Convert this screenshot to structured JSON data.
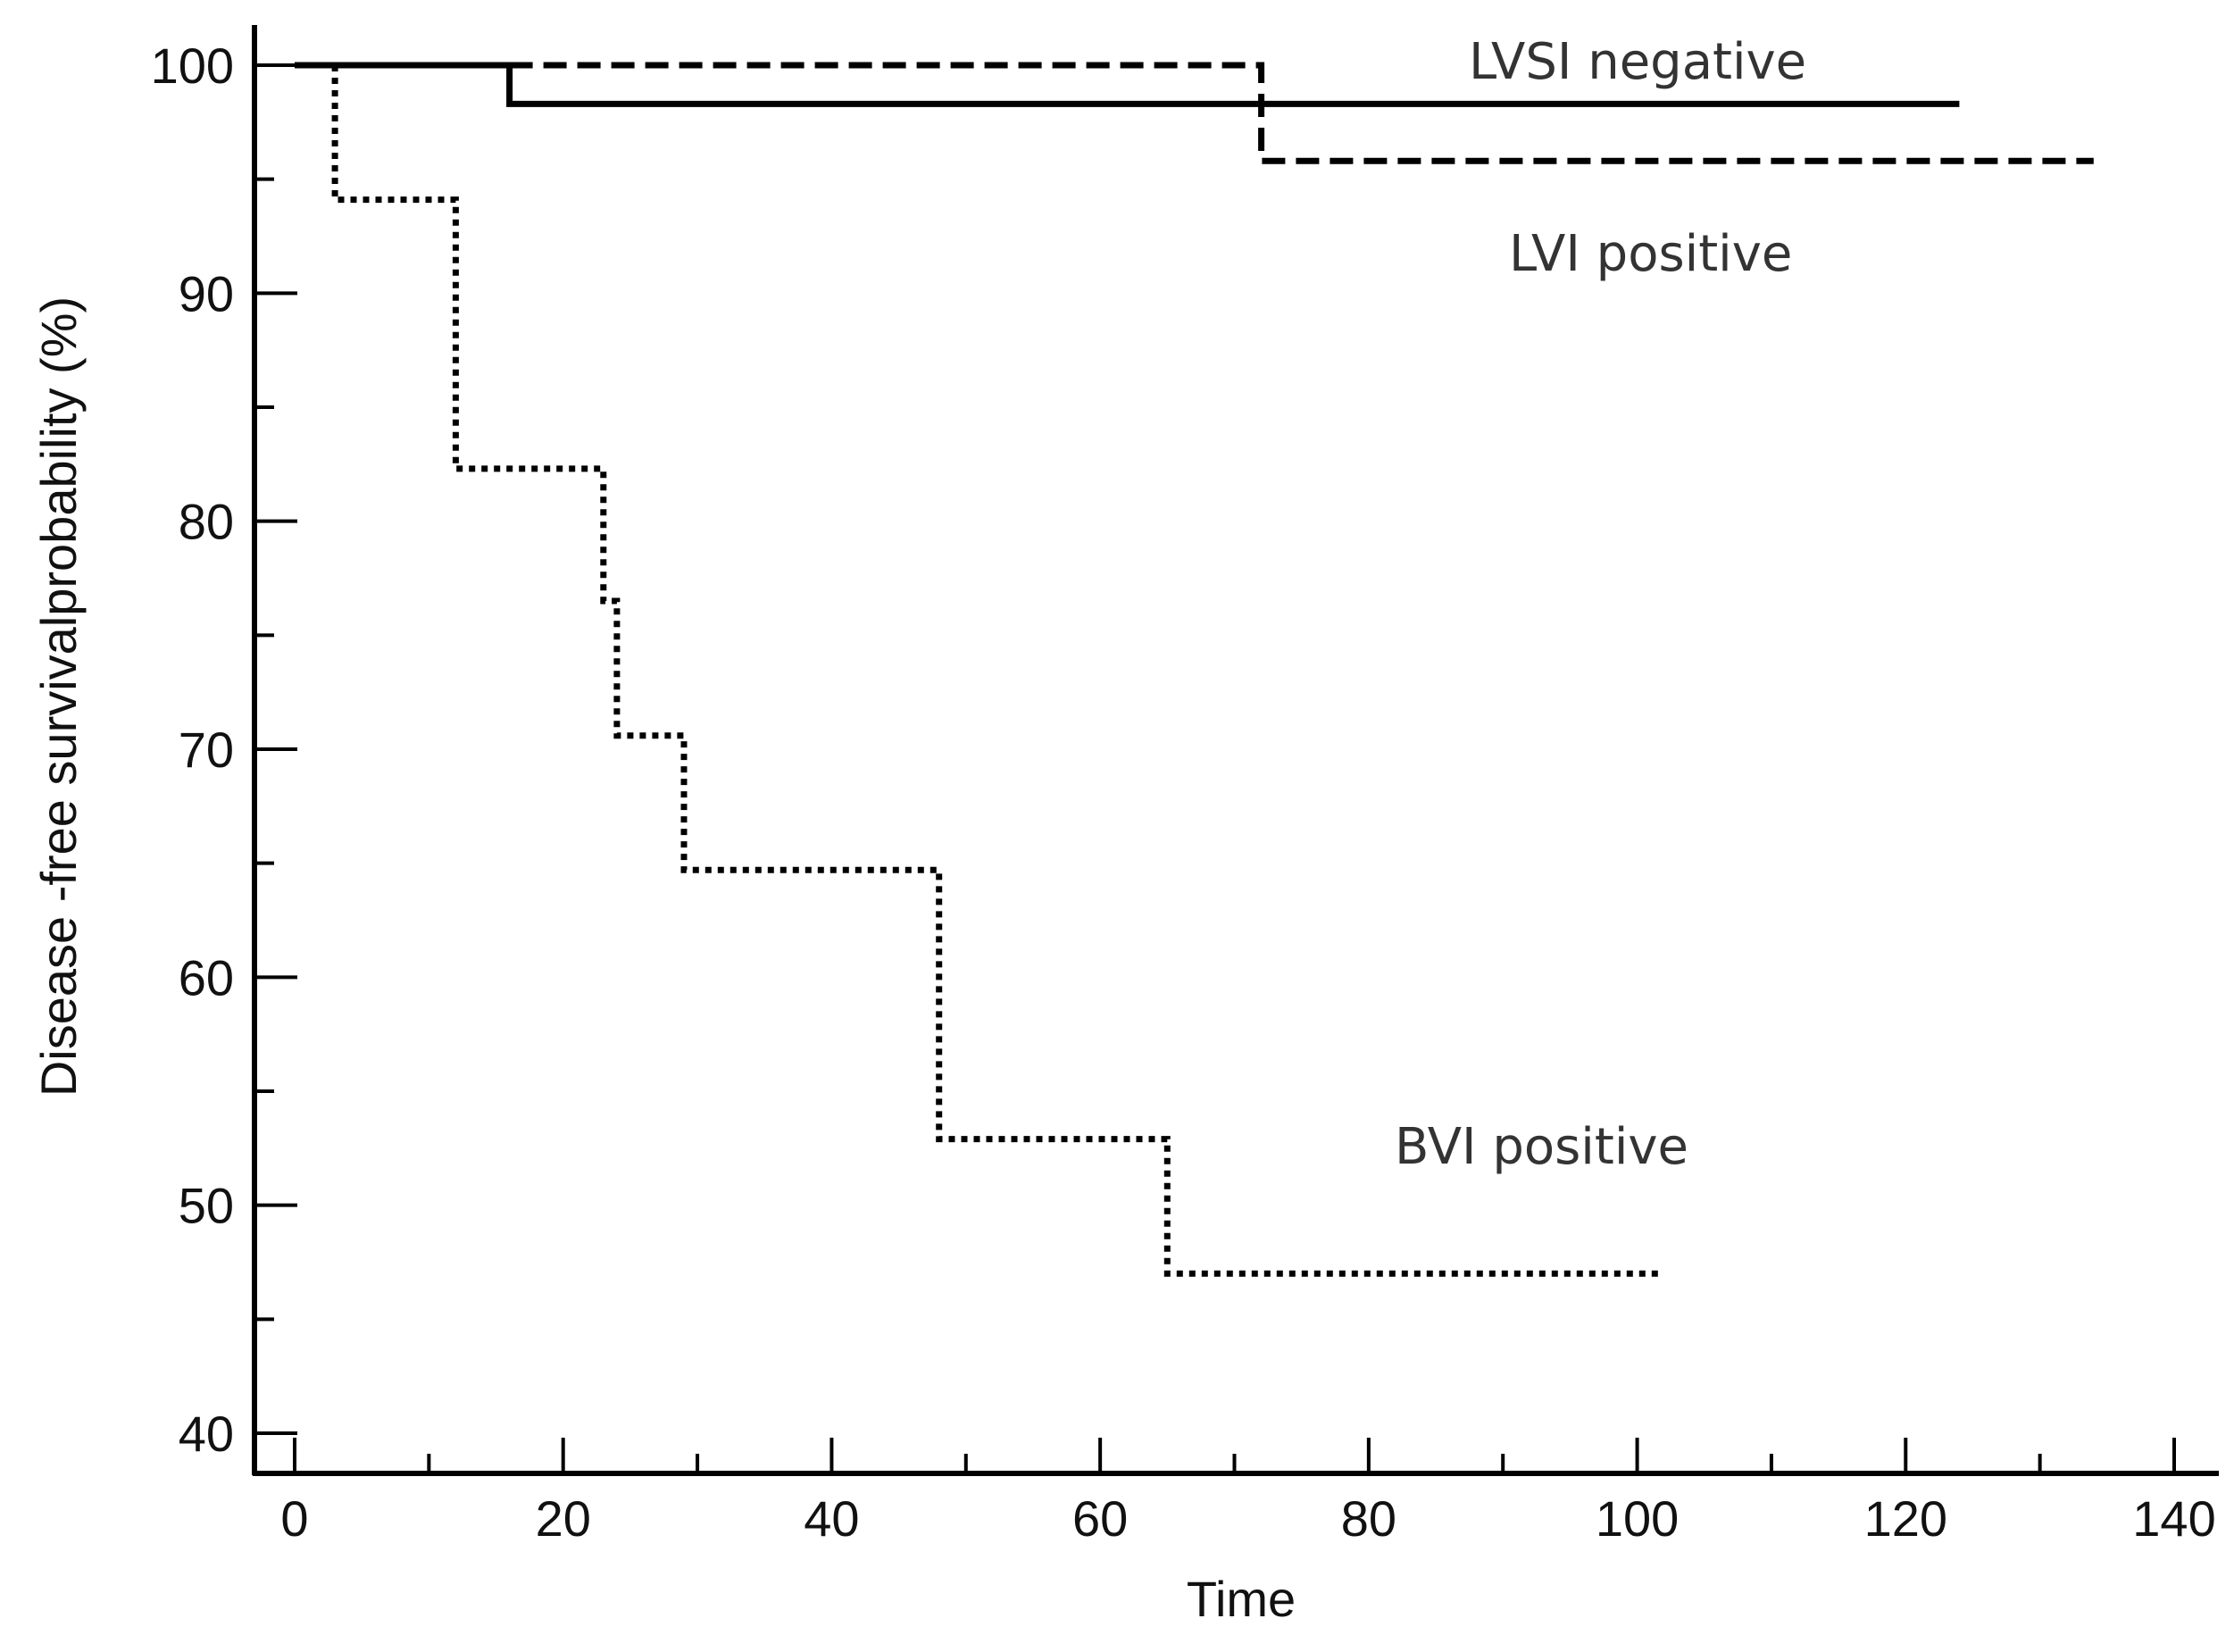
{
  "chart_data": {
    "type": "line",
    "subtype": "kaplan-meier step curves",
    "title": "",
    "xlabel": "Time",
    "ylabel": "Disease -free survivalprobability (%)",
    "xlim": [
      0,
      140
    ],
    "ylim": [
      40,
      100
    ],
    "xticks": [
      0,
      20,
      40,
      60,
      80,
      100,
      120,
      140
    ],
    "xminor": [
      10,
      30,
      50,
      70,
      90,
      110,
      130
    ],
    "yticks": [
      40,
      50,
      60,
      70,
      80,
      90,
      100
    ],
    "yminor": [
      45,
      55,
      65,
      75,
      85,
      95
    ],
    "grid": false,
    "series": [
      {
        "name": "LVSI negative",
        "style": "solid",
        "x": [
          0,
          16,
          16,
          124
        ],
        "y": [
          100,
          100,
          98.3,
          98.3
        ]
      },
      {
        "name": "LVI positive",
        "style": "dashed",
        "x": [
          16,
          72,
          72,
          134
        ],
        "y": [
          100,
          100,
          95.8,
          95.8
        ]
      },
      {
        "name": "BVI positive",
        "style": "dotted",
        "x": [
          3,
          3,
          12,
          12,
          23,
          23,
          24,
          24,
          29,
          29,
          48,
          48,
          65,
          65,
          102
        ],
        "y": [
          100,
          94.1,
          94.1,
          82.3,
          82.3,
          76.5,
          76.5,
          70.6,
          70.6,
          64.7,
          64.7,
          52.9,
          52.9,
          47.0,
          47.0
        ]
      }
    ]
  }
}
